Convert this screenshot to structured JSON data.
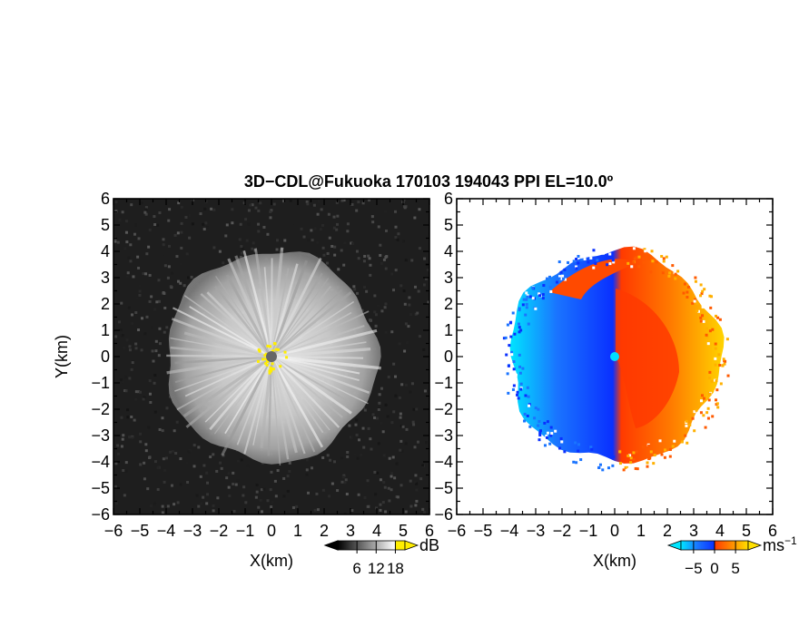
{
  "title": "3D−CDL@Fukuoka 170103 194043 PPI EL=10.0º",
  "colors": {
    "background": "#ffffff",
    "axis": "#000000",
    "reflectivity_bg": "#1e1e1e",
    "reflectivity_echo": "#c8c8c8",
    "center_marker": "#666666",
    "near_range_yellow": "#ffee00",
    "approaching": [
      "#00e5ff",
      "#0a3cff"
    ],
    "receding": [
      "#ff3a00",
      "#ffd400"
    ]
  },
  "chart_data": [
    {
      "type": "heatmap",
      "panel": "reflectivity",
      "xlabel": "X(km)",
      "ylabel": "Y(km)",
      "xlim": [
        -6,
        6
      ],
      "ylim": [
        -6,
        6
      ],
      "xticks": [
        "−6",
        "−5",
        "−4",
        "−3",
        "−2",
        "−1",
        "0",
        "1",
        "2",
        "3",
        "4",
        "5",
        "6"
      ],
      "yticks": [
        "6",
        "5",
        "4",
        "3",
        "2",
        "1",
        "0",
        "−1",
        "−2",
        "−3",
        "−4",
        "−5",
        "−6"
      ],
      "echo_radius_km": 4.0,
      "colorbar": {
        "unit": "dB",
        "ticks": [
          "6",
          "12",
          "18"
        ],
        "range": [
          0,
          21
        ],
        "colormap": "grayscale with yellow top"
      }
    },
    {
      "type": "heatmap",
      "panel": "doppler_velocity",
      "xlabel": "X(km)",
      "xlim": [
        -6,
        6
      ],
      "ylim": [
        -6,
        6
      ],
      "xticks": [
        "−6",
        "−5",
        "−4",
        "−3",
        "−2",
        "−1",
        "0",
        "1",
        "2",
        "3",
        "4",
        "5",
        "6"
      ],
      "yticks": [
        "6",
        "5",
        "4",
        "3",
        "2",
        "1",
        "0",
        "−1",
        "−2",
        "−3",
        "−4",
        "−5",
        "−6"
      ],
      "echo_radius_km": 4.0,
      "colorbar": {
        "unit": "ms",
        "unit_exponent": "−1",
        "ticks": [
          "−5",
          "0",
          "5"
        ],
        "range": [
          -8,
          8
        ],
        "colormap": "cyan-blue-red-orange-yellow"
      }
    }
  ]
}
